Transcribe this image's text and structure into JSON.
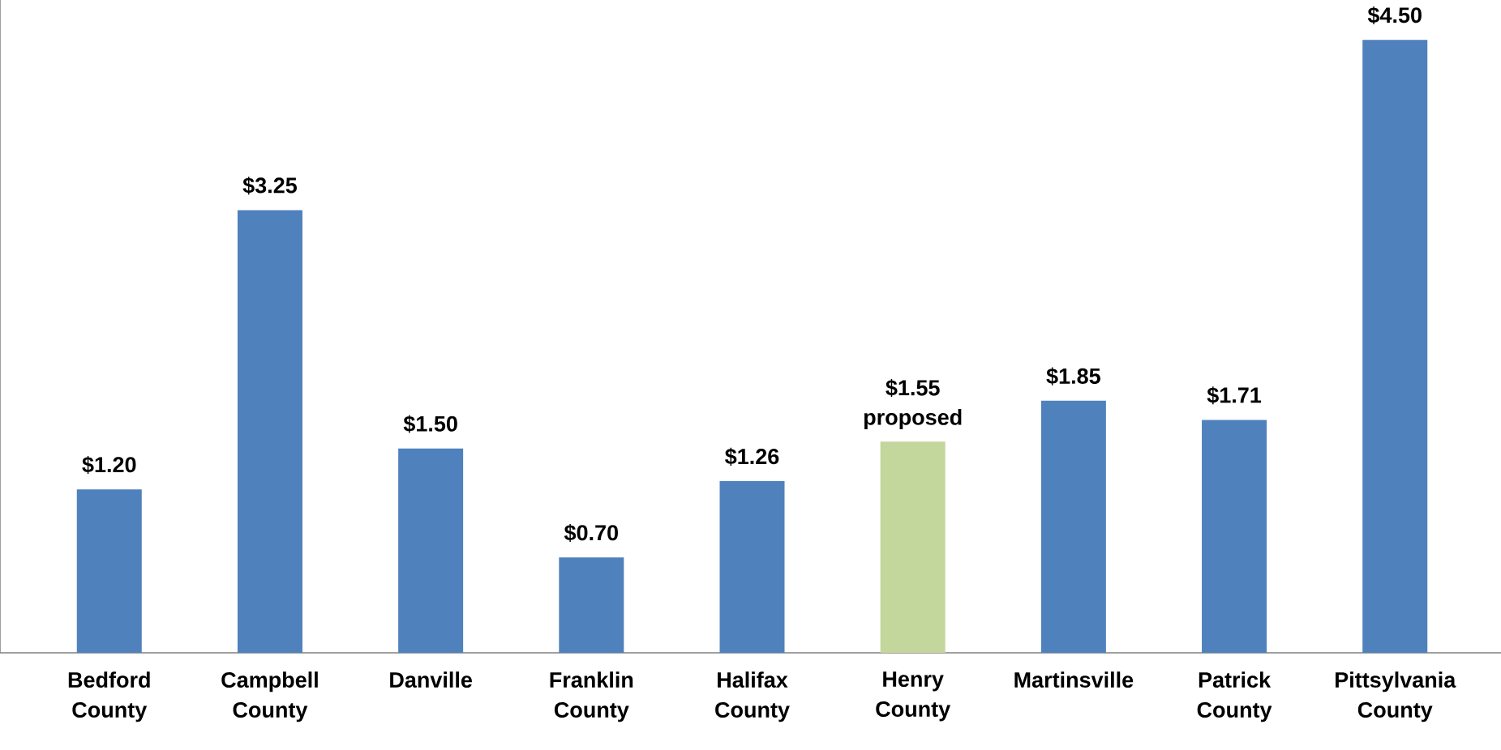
{
  "chart_data": {
    "type": "bar",
    "categories": [
      "Bedford County",
      "Campbell County",
      "Danville",
      "Franklin County",
      "Halifax County",
      "Henry County",
      "Martinsville",
      "Patrick County",
      "Pittsylvania County"
    ],
    "values": [
      1.2,
      3.25,
      1.5,
      0.7,
      1.26,
      1.55,
      1.85,
      1.71,
      4.5
    ],
    "colors": [
      "#4f81bd",
      "#4f81bd",
      "#4f81bd",
      "#4f81bd",
      "#4f81bd",
      "#c3d69b",
      "#4f81bd",
      "#4f81bd",
      "#4f81bd"
    ],
    "value_labels": [
      "$1.20",
      "$3.25",
      "$1.50",
      "$0.70",
      "$1.26",
      "$1.55",
      "$1.85",
      "$1.71",
      "$4.50"
    ],
    "annotations": [
      {
        "text": "proposed",
        "x": "Henry County",
        "y": 1.55
      }
    ]
  }
}
